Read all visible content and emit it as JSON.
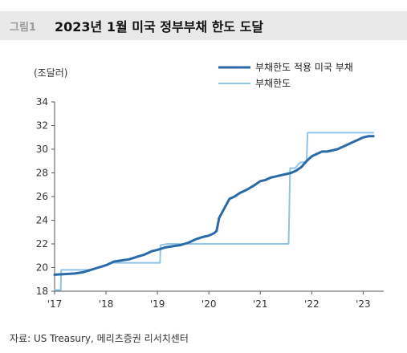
{
  "header": {
    "figure_label": "그림1",
    "title": "2023년 1월 미국 정부부채 한도 도달"
  },
  "unit_label": "(조달러)",
  "source": "자료: US Treasury, 메리츠증권 리서치센터",
  "chart_data": {
    "type": "line",
    "title": "2023년 1월 미국 정부부채 한도 도달",
    "ylabel": "(조달러)",
    "xlabel": "",
    "x_ticks": [
      "'17",
      "'18",
      "'19",
      "'20",
      "'21",
      "'22",
      "'23"
    ],
    "y_ticks": [
      "18",
      "20",
      "22",
      "24",
      "26",
      "28",
      "30",
      "32",
      "34"
    ],
    "ylim": [
      18,
      34
    ],
    "xlim": [
      2017.0,
      2023.4
    ],
    "legend_position": "top-right",
    "series": [
      {
        "name": "부채한도 적용 미국 부채",
        "color": "#2b6aa8",
        "x": [
          2017.0,
          2017.2,
          2017.4,
          2017.55,
          2017.7,
          2017.85,
          2018.0,
          2018.15,
          2018.3,
          2018.45,
          2018.6,
          2018.75,
          2018.9,
          2019.0,
          2019.15,
          2019.3,
          2019.45,
          2019.6,
          2019.75,
          2019.9,
          2020.0,
          2020.1,
          2020.15,
          2020.2,
          2020.3,
          2020.4,
          2020.5,
          2020.6,
          2020.75,
          2020.9,
          2021.0,
          2021.1,
          2021.2,
          2021.3,
          2021.4,
          2021.5,
          2021.6,
          2021.7,
          2021.8,
          2021.9,
          2022.0,
          2022.1,
          2022.2,
          2022.3,
          2022.4,
          2022.5,
          2022.6,
          2022.7,
          2022.8,
          2022.9,
          2023.0,
          2023.1,
          2023.2
        ],
        "values": [
          19.4,
          19.45,
          19.5,
          19.6,
          19.8,
          20.0,
          20.2,
          20.5,
          20.6,
          20.7,
          20.9,
          21.1,
          21.4,
          21.5,
          21.7,
          21.8,
          21.9,
          22.1,
          22.4,
          22.6,
          22.7,
          22.9,
          23.1,
          24.2,
          25.0,
          25.8,
          26.0,
          26.3,
          26.6,
          27.0,
          27.3,
          27.4,
          27.6,
          27.7,
          27.8,
          27.9,
          28.0,
          28.2,
          28.5,
          29.0,
          29.4,
          29.6,
          29.8,
          29.8,
          29.9,
          30.0,
          30.2,
          30.4,
          30.6,
          30.8,
          31.0,
          31.1,
          31.1
        ]
      },
      {
        "name": "부채한도",
        "color": "#8fc4ea",
        "x": [
          2017.0,
          2017.12,
          2017.13,
          2017.75,
          2017.76,
          2018.0,
          2018.12,
          2018.13,
          2019.05,
          2019.06,
          2019.2,
          2019.3,
          2019.6,
          2019.9,
          2020.5,
          2021.0,
          2021.55,
          2021.58,
          2021.68,
          2021.75,
          2021.8,
          2021.9,
          2021.92,
          2022.5,
          2023.2
        ],
        "values": [
          18.1,
          18.1,
          19.8,
          19.8,
          19.9,
          20.2,
          20.4,
          20.4,
          20.4,
          21.9,
          22.0,
          22.0,
          22.0,
          22.0,
          22.0,
          22.0,
          22.0,
          28.4,
          28.4,
          28.8,
          28.9,
          28.9,
          31.4,
          31.4,
          31.4
        ]
      }
    ]
  }
}
